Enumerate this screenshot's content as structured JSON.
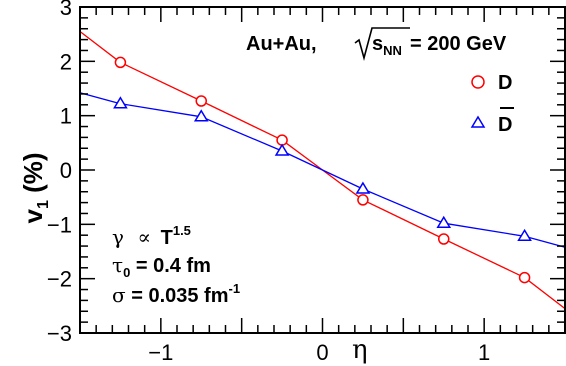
{
  "chart_data": {
    "type": "line",
    "xlabel": "η",
    "ylabel_main": "v",
    "ylabel_sub": "1",
    "ylabel_unit": " (%)",
    "xlim": [
      -1.5,
      1.5
    ],
    "ylim": [
      -3,
      3
    ],
    "x_ticks": [
      -1,
      0,
      1
    ],
    "x_tick_labels": [
      "−1",
      "0",
      "1"
    ],
    "y_ticks": [
      -3,
      -2,
      -1,
      0,
      1,
      2,
      3
    ],
    "y_tick_labels": [
      "−3",
      "−2",
      "−1",
      "0",
      "1",
      "2",
      "3"
    ],
    "grid": false,
    "legend_position": "top-right",
    "system": {
      "collision": "Au+Au,",
      "sqrt_symbol": "√",
      "s": "s",
      "sub": "NN",
      "energy": " = 200 GeV"
    },
    "parameters": {
      "gamma_symbol": "γ",
      "proportional": "∝",
      "T": "T",
      "T_exp": "1.5",
      "tau_symbol": "τ",
      "tau_sub": "0",
      "tau_value": " = 0.4 fm",
      "sigma_symbol": "σ",
      "sigma_value": " = 0.035 fm",
      "sigma_exp": "-1"
    },
    "series": [
      {
        "name": "D",
        "color": "#ff0000",
        "marker": "open-circle",
        "points_x": [
          -1.25,
          -0.75,
          -0.25,
          0.25,
          0.75,
          1.25
        ],
        "points_y": [
          1.98,
          1.27,
          0.55,
          -0.55,
          -1.27,
          -1.98
        ],
        "curve_x": [
          -1.5,
          -1.25,
          -0.75,
          -0.25,
          0.0,
          0.25,
          0.75,
          1.25,
          1.5
        ],
        "curve_y": [
          2.55,
          1.98,
          1.27,
          0.55,
          0.0,
          -0.55,
          -1.27,
          -1.98,
          -2.55
        ]
      },
      {
        "name": "D",
        "overline": true,
        "color": "#0000ff",
        "marker": "open-triangle",
        "points_x": [
          -1.25,
          -0.75,
          -0.25,
          0.25,
          0.75,
          1.25
        ],
        "points_y": [
          1.22,
          0.98,
          0.35,
          -0.35,
          -0.98,
          -1.22
        ],
        "errors": [
          0.08,
          0.08,
          0.08,
          0.08,
          0.08,
          0.08
        ],
        "curve_x": [
          -1.5,
          -1.25,
          -0.75,
          -0.25,
          0.0,
          0.25,
          0.75,
          1.25,
          1.5
        ],
        "curve_y": [
          1.42,
          1.22,
          0.98,
          0.35,
          0.0,
          -0.35,
          -0.98,
          -1.22,
          -1.42
        ]
      }
    ]
  }
}
